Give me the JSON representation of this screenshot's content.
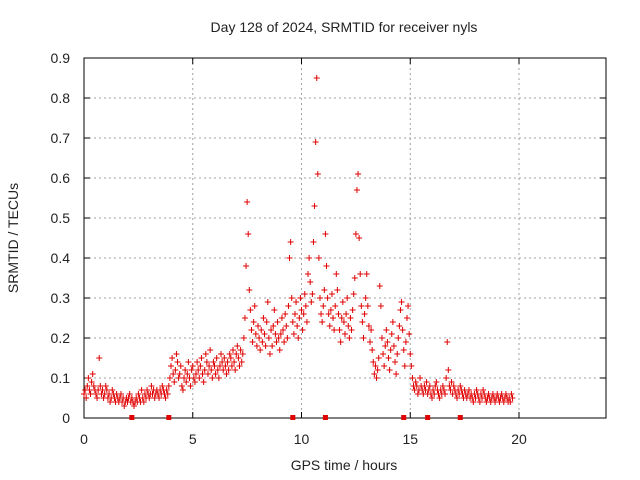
{
  "chart_data": {
    "type": "scatter",
    "title": "Day 128 of 2024, SRMTID for receiver nyls",
    "xlabel": "GPS time / hours",
    "ylabel": "SRMTID / TECUs",
    "xlim": [
      0,
      24
    ],
    "ylim": [
      0,
      0.9
    ],
    "x_ticks": [
      "0",
      "5",
      "10",
      "15",
      "20"
    ],
    "x_tick_values": [
      0,
      5,
      10,
      15,
      20
    ],
    "y_ticks": [
      "0",
      "0.1",
      "0.2",
      "0.3",
      "0.4",
      "0.5",
      "0.6",
      "0.7",
      "0.8",
      "0.9"
    ],
    "y_tick_values": [
      0,
      0.1,
      0.2,
      0.3,
      0.4,
      0.5,
      0.6,
      0.7,
      0.8,
      0.9
    ],
    "grid": true,
    "marker": "+",
    "color": "#e00000",
    "series": [
      {
        "name": "SRMTID",
        "x_step_hours": 0.05,
        "x_start_hours": 0.0,
        "values": [
          0.06,
          0.07,
          0.05,
          0.08,
          0.1,
          0.07,
          0.06,
          0.09,
          0.11,
          0.08,
          0.07,
          0.06,
          0.05,
          0.07,
          0.15,
          0.08,
          0.06,
          0.07,
          0.05,
          0.06,
          0.08,
          0.07,
          0.05,
          0.06,
          0.04,
          0.05,
          0.07,
          0.06,
          0.05,
          0.04,
          0.06,
          0.05,
          0.04,
          0.05,
          0.06,
          0.04,
          0.05,
          0.03,
          0.04,
          0.05,
          0.04,
          0.05,
          0.06,
          0.04,
          0.05,
          0.04,
          0.03,
          0.04,
          0.05,
          0.04,
          0.06,
          0.05,
          0.04,
          0.07,
          0.05,
          0.04,
          0.06,
          0.05,
          0.07,
          0.06,
          0.05,
          0.06,
          0.08,
          0.06,
          0.07,
          0.05,
          0.06,
          0.07,
          0.06,
          0.05,
          0.07,
          0.06,
          0.08,
          0.07,
          0.06,
          0.05,
          0.07,
          0.06,
          0.08,
          0.1,
          0.13,
          0.15,
          0.11,
          0.09,
          0.12,
          0.16,
          0.14,
          0.1,
          0.11,
          0.13,
          0.08,
          0.07,
          0.1,
          0.12,
          0.09,
          0.11,
          0.14,
          0.1,
          0.08,
          0.12,
          0.13,
          0.1,
          0.09,
          0.11,
          0.14,
          0.12,
          0.1,
          0.13,
          0.15,
          0.11,
          0.09,
          0.12,
          0.16,
          0.14,
          0.11,
          0.13,
          0.17,
          0.12,
          0.1,
          0.14,
          0.13,
          0.11,
          0.15,
          0.12,
          0.1,
          0.13,
          0.16,
          0.14,
          0.12,
          0.15,
          0.13,
          0.11,
          0.14,
          0.12,
          0.16,
          0.15,
          0.13,
          0.17,
          0.14,
          0.12,
          0.16,
          0.18,
          0.15,
          0.13,
          0.17,
          0.14,
          0.16,
          0.2,
          0.25,
          0.38,
          0.54,
          0.46,
          0.32,
          0.27,
          0.22,
          0.19,
          0.24,
          0.28,
          0.21,
          0.18,
          0.23,
          0.2,
          0.17,
          0.22,
          0.19,
          0.25,
          0.21,
          0.18,
          0.24,
          0.29,
          0.2,
          0.16,
          0.22,
          0.18,
          0.23,
          0.27,
          0.21,
          0.19,
          0.24,
          0.2,
          0.17,
          0.21,
          0.25,
          0.22,
          0.19,
          0.26,
          0.23,
          0.2,
          0.28,
          0.4,
          0.44,
          0.3,
          0.24,
          0.21,
          0.26,
          0.29,
          0.23,
          0.2,
          0.25,
          0.3,
          0.27,
          0.22,
          0.26,
          0.31,
          0.28,
          0.24,
          0.36,
          0.4,
          0.34,
          0.29,
          0.31,
          0.44,
          0.53,
          0.69,
          0.85,
          0.61,
          0.4,
          0.3,
          0.26,
          0.24,
          0.28,
          0.32,
          0.46,
          0.38,
          0.3,
          0.26,
          0.23,
          0.27,
          0.31,
          0.25,
          0.22,
          0.28,
          0.36,
          0.32,
          0.26,
          0.22,
          0.19,
          0.25,
          0.29,
          0.24,
          0.21,
          0.26,
          0.3,
          0.23,
          0.2,
          0.25,
          0.22,
          0.27,
          0.31,
          0.35,
          0.46,
          0.57,
          0.61,
          0.45,
          0.36,
          0.28,
          0.24,
          0.2,
          0.26,
          0.3,
          0.36,
          0.28,
          0.23,
          0.19,
          0.22,
          0.17,
          0.14,
          0.11,
          0.13,
          0.1,
          0.12,
          0.15,
          0.33,
          0.28,
          0.2,
          0.16,
          0.13,
          0.18,
          0.22,
          0.19,
          0.15,
          0.12,
          0.17,
          0.21,
          0.24,
          0.18,
          0.14,
          0.11,
          0.16,
          0.2,
          0.23,
          0.27,
          0.29,
          0.22,
          0.17,
          0.13,
          0.19,
          0.25,
          0.28,
          0.21,
          0.16,
          0.13,
          0.1,
          0.08,
          0.07,
          0.09,
          0.08,
          0.06,
          0.07,
          0.1,
          0.08,
          0.07,
          0.06,
          0.08,
          0.07,
          0.09,
          0.06,
          0.07,
          0.08,
          0.06,
          0.05,
          0.07,
          0.06,
          0.08,
          0.09,
          0.07,
          0.06,
          0.05,
          0.07,
          0.06,
          0.08,
          0.07,
          0.06,
          0.1,
          0.19,
          0.12,
          0.08,
          0.07,
          0.09,
          0.06,
          0.08,
          0.07,
          0.06,
          0.05,
          0.07,
          0.06,
          0.08,
          0.07,
          0.06,
          0.05,
          0.07,
          0.06,
          0.05,
          0.06,
          0.07,
          0.05,
          0.06,
          0.05,
          0.04,
          0.06,
          0.05,
          0.07,
          0.06,
          0.05,
          0.04,
          0.06,
          0.05,
          0.07,
          0.06,
          0.05,
          0.04,
          0.05,
          0.06,
          0.05,
          0.04,
          0.05,
          0.06,
          0.05,
          0.04,
          0.05,
          0.06,
          0.05,
          0.04,
          0.05,
          0.06,
          0.05,
          0.04,
          0.05,
          0.06,
          0.05,
          0.04,
          0.05,
          0.04,
          0.06,
          0.05
        ]
      }
    ],
    "gap_markers_x_hours": [
      2.2,
      3.9,
      9.6,
      11.1,
      14.7,
      15.8,
      17.3
    ]
  }
}
